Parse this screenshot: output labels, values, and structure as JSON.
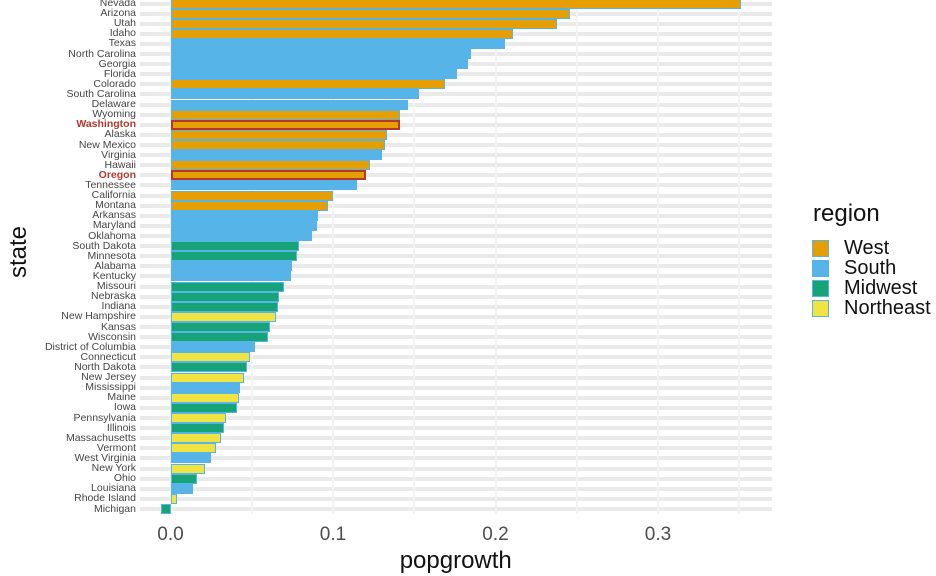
{
  "chart_data": {
    "type": "bar",
    "orientation": "horizontal",
    "xlabel": "popgrowth",
    "ylabel": "state",
    "xlim": [
      -0.019,
      0.37
    ],
    "grid": true,
    "gridline_values": [
      0,
      0.05,
      0.1,
      0.15,
      0.2,
      0.25,
      0.3,
      0.35
    ],
    "x_ticks": [
      {
        "label": "0.0",
        "value": 0.0
      },
      {
        "label": "0.1",
        "value": 0.1
      },
      {
        "label": "0.2",
        "value": 0.2
      },
      {
        "label": "0.3",
        "value": 0.3
      }
    ],
    "legend": {
      "title": "region",
      "position": "right",
      "entries": [
        {
          "label": "West",
          "color": "#E69F00"
        },
        {
          "label": "South",
          "color": "#56B4E9"
        },
        {
          "label": "Midwest",
          "color": "#15A377"
        },
        {
          "label": "Northeast",
          "color": "#F0E442"
        }
      ]
    },
    "bar_outline_color": "#56B4E9",
    "highlight": {
      "states": [
        "Washington",
        "Oregon"
      ],
      "color": "#B4382D"
    },
    "states": [
      {
        "name": "Nevada",
        "region": "West",
        "value": 0.351
      },
      {
        "name": "Arizona",
        "region": "West",
        "value": 0.246
      },
      {
        "name": "Utah",
        "region": "West",
        "value": 0.238
      },
      {
        "name": "Idaho",
        "region": "West",
        "value": 0.211
      },
      {
        "name": "Texas",
        "region": "South",
        "value": 0.206
      },
      {
        "name": "North Carolina",
        "region": "South",
        "value": 0.185
      },
      {
        "name": "Georgia",
        "region": "South",
        "value": 0.183
      },
      {
        "name": "Florida",
        "region": "South",
        "value": 0.176
      },
      {
        "name": "Colorado",
        "region": "West",
        "value": 0.169
      },
      {
        "name": "South Carolina",
        "region": "South",
        "value": 0.153
      },
      {
        "name": "Delaware",
        "region": "South",
        "value": 0.146
      },
      {
        "name": "Wyoming",
        "region": "West",
        "value": 0.141
      },
      {
        "name": "Washington",
        "region": "West",
        "value": 0.141
      },
      {
        "name": "Alaska",
        "region": "West",
        "value": 0.133
      },
      {
        "name": "New Mexico",
        "region": "West",
        "value": 0.132
      },
      {
        "name": "Virginia",
        "region": "South",
        "value": 0.13
      },
      {
        "name": "Hawaii",
        "region": "West",
        "value": 0.123
      },
      {
        "name": "Oregon",
        "region": "West",
        "value": 0.12
      },
      {
        "name": "Tennessee",
        "region": "South",
        "value": 0.115
      },
      {
        "name": "California",
        "region": "West",
        "value": 0.1
      },
      {
        "name": "Montana",
        "region": "West",
        "value": 0.097
      },
      {
        "name": "Arkansas",
        "region": "South",
        "value": 0.091
      },
      {
        "name": "Maryland",
        "region": "South",
        "value": 0.09
      },
      {
        "name": "Oklahoma",
        "region": "South",
        "value": 0.087
      },
      {
        "name": "South Dakota",
        "region": "Midwest",
        "value": 0.079
      },
      {
        "name": "Minnesota",
        "region": "Midwest",
        "value": 0.078
      },
      {
        "name": "Alabama",
        "region": "South",
        "value": 0.075
      },
      {
        "name": "Kentucky",
        "region": "South",
        "value": 0.074
      },
      {
        "name": "Missouri",
        "region": "Midwest",
        "value": 0.07
      },
      {
        "name": "Nebraska",
        "region": "Midwest",
        "value": 0.067
      },
      {
        "name": "Indiana",
        "region": "Midwest",
        "value": 0.066
      },
      {
        "name": "New Hampshire",
        "region": "Northeast",
        "value": 0.065
      },
      {
        "name": "Kansas",
        "region": "Midwest",
        "value": 0.061
      },
      {
        "name": "Wisconsin",
        "region": "Midwest",
        "value": 0.06
      },
      {
        "name": "District of Columbia",
        "region": "South",
        "value": 0.052
      },
      {
        "name": "Connecticut",
        "region": "Northeast",
        "value": 0.049
      },
      {
        "name": "North Dakota",
        "region": "Midwest",
        "value": 0.047
      },
      {
        "name": "New Jersey",
        "region": "Northeast",
        "value": 0.045
      },
      {
        "name": "Mississippi",
        "region": "South",
        "value": 0.043
      },
      {
        "name": "Maine",
        "region": "Northeast",
        "value": 0.042
      },
      {
        "name": "Iowa",
        "region": "Midwest",
        "value": 0.041
      },
      {
        "name": "Pennsylvania",
        "region": "Northeast",
        "value": 0.034
      },
      {
        "name": "Illinois",
        "region": "Midwest",
        "value": 0.033
      },
      {
        "name": "Massachusetts",
        "region": "Northeast",
        "value": 0.031
      },
      {
        "name": "Vermont",
        "region": "Northeast",
        "value": 0.028
      },
      {
        "name": "West Virginia",
        "region": "South",
        "value": 0.025
      },
      {
        "name": "New York",
        "region": "Northeast",
        "value": 0.021
      },
      {
        "name": "Ohio",
        "region": "Midwest",
        "value": 0.016
      },
      {
        "name": "Louisiana",
        "region": "South",
        "value": 0.014
      },
      {
        "name": "Rhode Island",
        "region": "Northeast",
        "value": 0.004
      },
      {
        "name": "Michigan",
        "region": "Midwest",
        "value": -0.006
      }
    ]
  }
}
